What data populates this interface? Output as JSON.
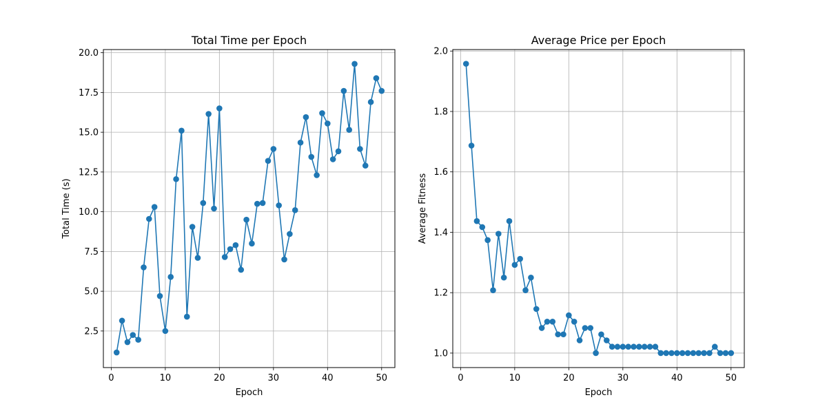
{
  "chart_data": [
    {
      "type": "line",
      "title": "Total Time per Epoch",
      "xlabel": "Epoch",
      "ylabel": "Total Time (s)",
      "xlim": [
        -1.45,
        52.45
      ],
      "ylim": [
        0.2,
        20.2
      ],
      "xticks": [
        0,
        10,
        20,
        30,
        40,
        50
      ],
      "xtick_labels": [
        "0",
        "10",
        "20",
        "30",
        "40",
        "50"
      ],
      "yticks": [
        2.5,
        5.0,
        7.5,
        10.0,
        12.5,
        15.0,
        17.5,
        20.0
      ],
      "ytick_labels": [
        "2.5",
        "5.0",
        "7.5",
        "10.0",
        "12.5",
        "15.0",
        "17.5",
        "20.0"
      ],
      "grid": true,
      "color": "#1f77b4",
      "x": [
        1,
        2,
        3,
        4,
        5,
        6,
        7,
        8,
        9,
        10,
        11,
        12,
        13,
        14,
        15,
        16,
        17,
        18,
        19,
        20,
        21,
        22,
        23,
        24,
        25,
        26,
        27,
        28,
        29,
        30,
        31,
        32,
        33,
        34,
        35,
        36,
        37,
        38,
        39,
        40,
        41,
        42,
        43,
        44,
        45,
        46,
        47,
        48,
        49,
        50
      ],
      "y": [
        1.15,
        3.15,
        1.8,
        2.25,
        1.95,
        6.5,
        9.55,
        10.3,
        4.7,
        2.5,
        5.9,
        12.05,
        15.1,
        3.4,
        9.05,
        7.1,
        10.55,
        16.15,
        10.2,
        16.5,
        7.15,
        7.65,
        7.9,
        6.35,
        9.5,
        8.0,
        10.5,
        10.55,
        13.2,
        13.95,
        10.4,
        7.0,
        8.6,
        10.1,
        14.35,
        15.95,
        13.45,
        12.3,
        16.2,
        15.55,
        13.3,
        13.8,
        17.6,
        15.15,
        19.3,
        13.95,
        12.9,
        16.9,
        18.4,
        17.6
      ]
    },
    {
      "type": "line",
      "title": "Average Price per Epoch",
      "xlabel": "Epoch",
      "ylabel": "Average Fitness",
      "xlim": [
        -1.45,
        52.45
      ],
      "ylim": [
        0.952,
        2.005
      ],
      "xticks": [
        0,
        10,
        20,
        30,
        40,
        50
      ],
      "xtick_labels": [
        "0",
        "10",
        "20",
        "30",
        "40",
        "50"
      ],
      "yticks": [
        1.0,
        1.2,
        1.4,
        1.6,
        1.8,
        2.0
      ],
      "ytick_labels": [
        "1.0",
        "1.2",
        "1.4",
        "1.6",
        "1.8",
        "2.0"
      ],
      "grid": true,
      "color": "#1f77b4",
      "x": [
        1,
        2,
        3,
        4,
        5,
        6,
        7,
        8,
        9,
        10,
        11,
        12,
        13,
        14,
        15,
        16,
        17,
        18,
        19,
        20,
        21,
        22,
        23,
        24,
        25,
        26,
        27,
        28,
        29,
        30,
        31,
        32,
        33,
        34,
        35,
        36,
        37,
        38,
        39,
        40,
        41,
        42,
        43,
        44,
        45,
        46,
        47,
        48,
        49,
        50
      ],
      "y": [
        1.958,
        1.687,
        1.437,
        1.417,
        1.374,
        1.208,
        1.395,
        1.25,
        1.437,
        1.292,
        1.312,
        1.208,
        1.25,
        1.146,
        1.083,
        1.104,
        1.104,
        1.062,
        1.062,
        1.125,
        1.104,
        1.042,
        1.083,
        1.083,
        1.0,
        1.062,
        1.042,
        1.021,
        1.021,
        1.021,
        1.021,
        1.021,
        1.021,
        1.021,
        1.021,
        1.021,
        1.0,
        1.0,
        1.0,
        1.0,
        1.0,
        1.0,
        1.0,
        1.0,
        1.0,
        1.0,
        1.021,
        1.0,
        1.0,
        1.0
      ]
    }
  ]
}
